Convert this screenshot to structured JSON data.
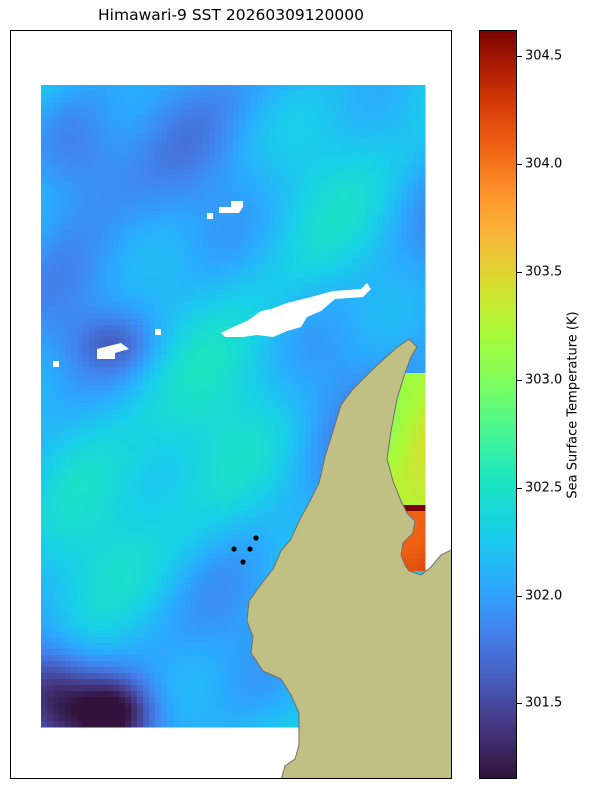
{
  "title": "Himawari-9 SST 20260309120000",
  "colorbar": {
    "label": "Sea Surface Temperature (K)",
    "min": 301.15,
    "max": 304.62,
    "colormap": "turbo",
    "ticks": [
      "301.5",
      "302.0",
      "302.5",
      "303.0",
      "303.5",
      "304.0",
      "304.5"
    ]
  },
  "colors": {
    "land": "#c0bf84",
    "coast": "#6e6e6e",
    "missing": "#ffffff",
    "points": "#000000"
  },
  "map": {
    "field": "sea surface temperature (K)",
    "land_visible": true,
    "observation_points_count": 4
  }
}
